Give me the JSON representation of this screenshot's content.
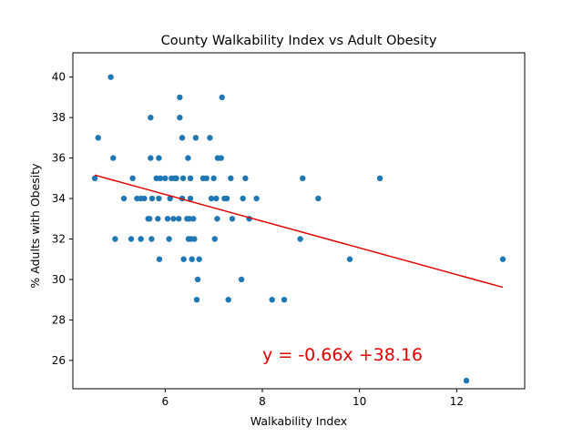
{
  "chart_data": {
    "type": "scatter",
    "title": "County Walkability Index vs Adult Obesity",
    "xlabel": "Walkability Index",
    "ylabel": "% Adults with Obesity",
    "xlim": [
      4.1,
      13.4
    ],
    "ylim": [
      24.6,
      41.2
    ],
    "xticks": [
      6,
      8,
      10,
      12
    ],
    "yticks": [
      26,
      28,
      30,
      32,
      34,
      36,
      38,
      40
    ],
    "grid": false,
    "point_color": "#1f77b4",
    "line_color": "#e00000",
    "regression": {
      "slope": -0.66,
      "intercept": 38.16,
      "x_range": [
        4.55,
        12.95
      ]
    },
    "annotation": "y = -0.66x +38.16",
    "points": [
      {
        "x": 4.55,
        "y": 35
      },
      {
        "x": 4.62,
        "y": 37
      },
      {
        "x": 4.88,
        "y": 40
      },
      {
        "x": 4.93,
        "y": 36
      },
      {
        "x": 4.97,
        "y": 32
      },
      {
        "x": 5.15,
        "y": 34
      },
      {
        "x": 5.3,
        "y": 32
      },
      {
        "x": 5.33,
        "y": 35
      },
      {
        "x": 5.42,
        "y": 34
      },
      {
        "x": 5.5,
        "y": 32
      },
      {
        "x": 5.5,
        "y": 34
      },
      {
        "x": 5.57,
        "y": 34
      },
      {
        "x": 5.65,
        "y": 33
      },
      {
        "x": 5.68,
        "y": 33
      },
      {
        "x": 5.7,
        "y": 38
      },
      {
        "x": 5.7,
        "y": 36
      },
      {
        "x": 5.72,
        "y": 32
      },
      {
        "x": 5.73,
        "y": 34
      },
      {
        "x": 5.82,
        "y": 35
      },
      {
        "x": 5.85,
        "y": 33
      },
      {
        "x": 5.87,
        "y": 34
      },
      {
        "x": 5.87,
        "y": 36
      },
      {
        "x": 5.88,
        "y": 31
      },
      {
        "x": 5.9,
        "y": 35
      },
      {
        "x": 6.0,
        "y": 35
      },
      {
        "x": 6.05,
        "y": 33
      },
      {
        "x": 6.08,
        "y": 32
      },
      {
        "x": 6.1,
        "y": 34
      },
      {
        "x": 6.13,
        "y": 35
      },
      {
        "x": 6.17,
        "y": 33
      },
      {
        "x": 6.2,
        "y": 35
      },
      {
        "x": 6.23,
        "y": 35
      },
      {
        "x": 6.28,
        "y": 33
      },
      {
        "x": 6.3,
        "y": 39
      },
      {
        "x": 6.3,
        "y": 38
      },
      {
        "x": 6.35,
        "y": 37
      },
      {
        "x": 6.35,
        "y": 34
      },
      {
        "x": 6.37,
        "y": 35
      },
      {
        "x": 6.38,
        "y": 31
      },
      {
        "x": 6.45,
        "y": 33
      },
      {
        "x": 6.47,
        "y": 36
      },
      {
        "x": 6.48,
        "y": 32
      },
      {
        "x": 6.5,
        "y": 33
      },
      {
        "x": 6.52,
        "y": 35
      },
      {
        "x": 6.52,
        "y": 34
      },
      {
        "x": 6.53,
        "y": 32
      },
      {
        "x": 6.55,
        "y": 31
      },
      {
        "x": 6.58,
        "y": 33
      },
      {
        "x": 6.6,
        "y": 32
      },
      {
        "x": 6.63,
        "y": 37
      },
      {
        "x": 6.65,
        "y": 29
      },
      {
        "x": 6.67,
        "y": 30
      },
      {
        "x": 6.7,
        "y": 31
      },
      {
        "x": 6.78,
        "y": 35
      },
      {
        "x": 6.85,
        "y": 35
      },
      {
        "x": 6.92,
        "y": 37
      },
      {
        "x": 6.95,
        "y": 34
      },
      {
        "x": 7.0,
        "y": 35
      },
      {
        "x": 7.02,
        "y": 32
      },
      {
        "x": 7.05,
        "y": 34
      },
      {
        "x": 7.07,
        "y": 33
      },
      {
        "x": 7.08,
        "y": 36
      },
      {
        "x": 7.15,
        "y": 36
      },
      {
        "x": 7.17,
        "y": 39
      },
      {
        "x": 7.22,
        "y": 34
      },
      {
        "x": 7.27,
        "y": 34
      },
      {
        "x": 7.3,
        "y": 29
      },
      {
        "x": 7.35,
        "y": 35
      },
      {
        "x": 7.38,
        "y": 33
      },
      {
        "x": 7.57,
        "y": 30
      },
      {
        "x": 7.6,
        "y": 34
      },
      {
        "x": 7.65,
        "y": 35
      },
      {
        "x": 7.73,
        "y": 33
      },
      {
        "x": 7.88,
        "y": 34
      },
      {
        "x": 8.2,
        "y": 29
      },
      {
        "x": 8.45,
        "y": 29
      },
      {
        "x": 8.78,
        "y": 32
      },
      {
        "x": 8.83,
        "y": 35
      },
      {
        "x": 9.15,
        "y": 34
      },
      {
        "x": 9.8,
        "y": 31
      },
      {
        "x": 10.42,
        "y": 35
      },
      {
        "x": 12.2,
        "y": 25
      },
      {
        "x": 12.95,
        "y": 31
      }
    ]
  }
}
